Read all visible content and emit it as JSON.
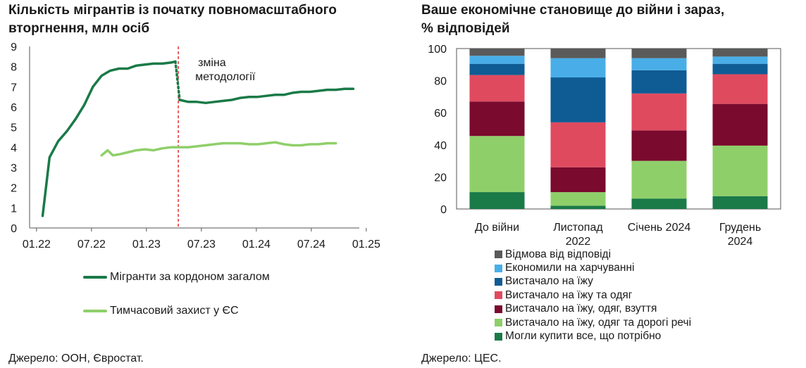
{
  "left_chart": {
    "title_line1": "Кількість мігрантів із початку повномасштабного",
    "title_line2": "вторгнення, млн осіб",
    "source": "Джерело: ООН, Євростат.",
    "annotation_line1": "зміна",
    "annotation_line2": "методології",
    "legend": [
      "Мігранти за кордоном загалом",
      "Тимчасовий захист у ЄС"
    ]
  },
  "right_chart": {
    "title_line1": "Ваше економічне становище до війни і зараз,",
    "title_line2": "% відповідей",
    "source": "Джерело: ЦЕС."
  },
  "colors": {
    "dark_green": "#1a7a48",
    "light_green": "#8fcf6a",
    "maroon": "#7a0a2e",
    "pink": "#e04a5f",
    "navy": "#0f5c94",
    "sky": "#49aee8",
    "gray": "#5a5a5a",
    "methodology_line": "#e03030"
  },
  "chart_data": [
    {
      "type": "line",
      "title": "Кількість мігрантів із початку повномасштабного вторгнення, млн осіб",
      "x_tick_labels": [
        "01.22",
        "07.22",
        "01.23",
        "07.23",
        "01.24",
        "07.24",
        "01.25"
      ],
      "xlim": [
        0,
        38
      ],
      "ylim": [
        0,
        9
      ],
      "y_ticks": [
        0,
        1,
        2,
        3,
        4,
        5,
        6,
        7,
        8,
        9
      ],
      "x_unit": "months since 01.22",
      "grid": false,
      "methodology_break_x": 17.3,
      "annotation": "зміна методології",
      "series": [
        {
          "name": "Мігранти за кордоном загалом",
          "color": "#1a7a48",
          "segments": [
            [
              [
                1.5,
                0.6
              ],
              [
                2.3,
                3.5
              ],
              [
                3.3,
                4.3
              ],
              [
                4.3,
                4.8
              ],
              [
                5.3,
                5.4
              ],
              [
                6.3,
                6.1
              ],
              [
                7.3,
                7.0
              ],
              [
                8.3,
                7.55
              ],
              [
                9.3,
                7.8
              ],
              [
                10.3,
                7.9
              ],
              [
                11.3,
                7.9
              ],
              [
                12.3,
                8.05
              ],
              [
                13.3,
                8.1
              ],
              [
                14.3,
                8.15
              ],
              [
                15.3,
                8.15
              ],
              [
                16.3,
                8.2
              ],
              [
                16.8,
                8.25
              ]
            ],
            [
              [
                17.3,
                6.35
              ],
              [
                18.3,
                6.25
              ],
              [
                19.3,
                6.25
              ],
              [
                20.3,
                6.2
              ],
              [
                21.3,
                6.25
              ],
              [
                22.3,
                6.3
              ],
              [
                23.3,
                6.35
              ],
              [
                24.3,
                6.45
              ],
              [
                25.3,
                6.5
              ],
              [
                26.3,
                6.5
              ],
              [
                27.3,
                6.55
              ],
              [
                28.3,
                6.6
              ],
              [
                29.3,
                6.6
              ],
              [
                30.3,
                6.7
              ],
              [
                31.3,
                6.75
              ],
              [
                32.3,
                6.75
              ],
              [
                33.3,
                6.8
              ],
              [
                34.3,
                6.85
              ],
              [
                35.3,
                6.85
              ],
              [
                36.3,
                6.9
              ],
              [
                37.3,
                6.9
              ]
            ]
          ],
          "dotted_connector": [
            [
              16.8,
              8.25
            ],
            [
              17.3,
              6.35
            ]
          ]
        },
        {
          "name": "Тимчасовий захист у ЄС",
          "color": "#8fcf6a",
          "segments": [
            [
              [
                8.3,
                3.6
              ],
              [
                9.0,
                3.85
              ],
              [
                9.6,
                3.6
              ],
              [
                10.3,
                3.65
              ],
              [
                11.3,
                3.75
              ],
              [
                12.3,
                3.85
              ],
              [
                13.3,
                3.9
              ],
              [
                14.3,
                3.85
              ],
              [
                15.3,
                3.95
              ],
              [
                16.3,
                4.0
              ],
              [
                17.3,
                4.0
              ],
              [
                18.3,
                4.0
              ],
              [
                19.3,
                4.05
              ],
              [
                20.3,
                4.1
              ],
              [
                21.3,
                4.15
              ],
              [
                22.3,
                4.2
              ],
              [
                23.3,
                4.2
              ],
              [
                24.3,
                4.2
              ],
              [
                25.3,
                4.15
              ],
              [
                26.3,
                4.15
              ],
              [
                27.3,
                4.2
              ],
              [
                28.3,
                4.25
              ],
              [
                29.3,
                4.15
              ],
              [
                30.3,
                4.1
              ],
              [
                31.3,
                4.1
              ],
              [
                32.3,
                4.15
              ],
              [
                33.3,
                4.15
              ],
              [
                34.3,
                4.2
              ],
              [
                35.3,
                4.2
              ]
            ]
          ]
        }
      ]
    },
    {
      "type": "bar",
      "stacked": true,
      "title": "Ваше економічне становище до війни і зараз, % відповідей",
      "categories": [
        [
          "До війни"
        ],
        [
          "Листопад",
          "2022"
        ],
        [
          "Січень 2024"
        ],
        [
          "Грудень",
          "2024"
        ]
      ],
      "ylim": [
        0,
        100
      ],
      "y_ticks": [
        0,
        20,
        40,
        60,
        80,
        100
      ],
      "grid": false,
      "series": [
        {
          "name": "Могли купити все, що потрібно",
          "color": "#1a7a48",
          "values": [
            10.5,
            2,
            6.5,
            8
          ]
        },
        {
          "name": "Вистачало на їжу, одяг та дорогі речі",
          "color": "#8fcf6a",
          "values": [
            35,
            8.5,
            23.5,
            31.5
          ]
        },
        {
          "name": "Вистачало на їжу, одяг, взуття",
          "color": "#7a0a2e",
          "values": [
            21.5,
            15.5,
            19,
            26
          ]
        },
        {
          "name": "Вистачало на їжу та одяг",
          "color": "#e04a5f",
          "values": [
            16.5,
            28,
            23,
            18.5
          ]
        },
        {
          "name": "Вистачало на їжу",
          "color": "#0f5c94",
          "values": [
            7,
            28,
            14.5,
            6.5
          ]
        },
        {
          "name": "Економили на харчуванні",
          "color": "#49aee8",
          "values": [
            5,
            12,
            7.5,
            4.5
          ]
        },
        {
          "name": "Відмова від відповіді",
          "color": "#5a5a5a",
          "values": [
            4.5,
            6,
            6,
            5
          ]
        }
      ],
      "legend_order": [
        "Відмова від відповіді",
        "Економили на харчуванні",
        "Вистачало на їжу",
        "Вистачало на їжу та одяг",
        "Вистачало на їжу, одяг, взуття",
        "Вистачало на їжу, одяг та дорогі речі",
        "Могли купити все, що потрібно"
      ]
    }
  ]
}
